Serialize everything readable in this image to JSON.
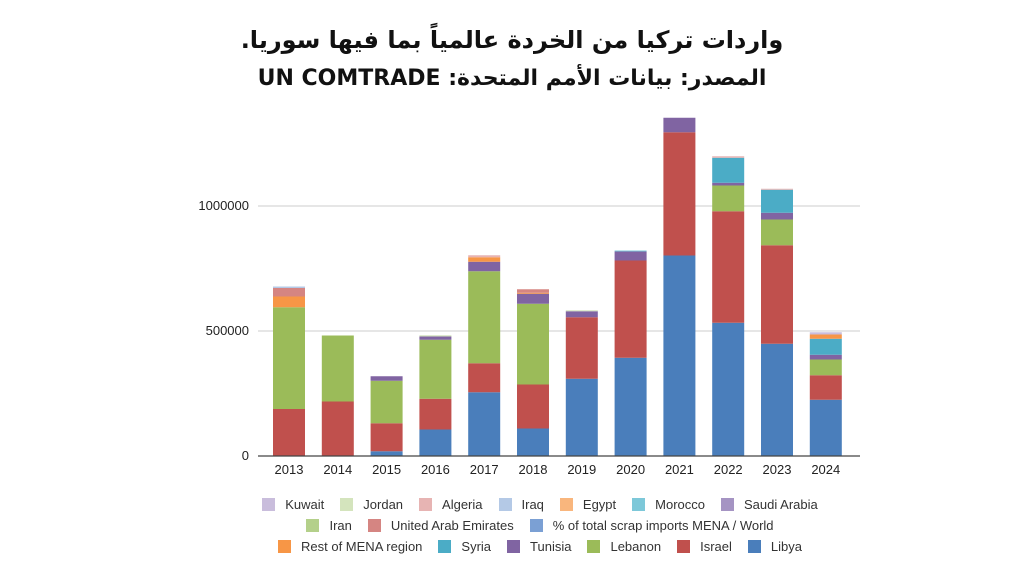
{
  "chart_data": {
    "type": "bar",
    "stacked": true,
    "title": "واردات  تركيا من الخردة عالمياً بما فيها سوريا.",
    "subtitle": "المصدر: بيانات الأمم المتحدة: UN COMTRADE",
    "xlabel": "",
    "ylabel": "",
    "ylim": [
      0,
      1360000
    ],
    "yticks": [
      0,
      500000,
      1000000
    ],
    "ytick_labels": [
      "0",
      "500000",
      "1000000"
    ],
    "grid": true,
    "legend_position": "bottom",
    "categories": [
      "2013",
      "2014",
      "2015",
      "2016",
      "2017",
      "2018",
      "2019",
      "2020",
      "2021",
      "2022",
      "2023",
      "2024"
    ],
    "series": [
      {
        "name": "Libya",
        "color": "#4a7ebb",
        "values": [
          0,
          0,
          19000,
          106000,
          255000,
          110000,
          309000,
          393000,
          802000,
          533000,
          449000,
          225000
        ]
      },
      {
        "name": "Israel",
        "color": "#c0504d",
        "values": [
          188000,
          218000,
          112000,
          123000,
          116000,
          176000,
          246000,
          389000,
          493000,
          446000,
          394000,
          98000
        ]
      },
      {
        "name": "Lebanon",
        "color": "#9bbb59",
        "values": [
          407000,
          264000,
          170000,
          236000,
          368000,
          323000,
          0,
          0,
          0,
          103000,
          103000,
          63000
        ]
      },
      {
        "name": "Tunisia",
        "color": "#8064a2",
        "values": [
          0,
          0,
          18000,
          13000,
          38000,
          40000,
          24000,
          36000,
          58000,
          11000,
          27000,
          19000
        ]
      },
      {
        "name": "Syria",
        "color": "#4bacc6",
        "values": [
          0,
          0,
          0,
          0,
          0,
          0,
          0,
          0,
          0,
          100000,
          92000,
          64000
        ]
      },
      {
        "name": "Rest of MENA region",
        "color": "#f79646",
        "values": [
          43000,
          0,
          0,
          0,
          18000,
          4000,
          0,
          0,
          0,
          0,
          0,
          17000
        ]
      },
      {
        "name": "% of total scrap imports MENA / World",
        "color": "#7ba0d4",
        "values": [
          0,
          0,
          0,
          0,
          0,
          0,
          0,
          0,
          0,
          0,
          0,
          0
        ]
      },
      {
        "name": "United Arab Emirates",
        "color": "#d58582",
        "values": [
          34000,
          0,
          0,
          0,
          0,
          14000,
          0,
          0,
          0,
          0,
          0,
          0
        ]
      },
      {
        "name": "Iran",
        "color": "#b4d08a",
        "values": [
          0,
          0,
          0,
          0,
          0,
          0,
          0,
          0,
          0,
          0,
          0,
          0
        ]
      },
      {
        "name": "Saudi Arabia",
        "color": "#a594c3",
        "values": [
          0,
          0,
          0,
          0,
          0,
          0,
          0,
          0,
          0,
          0,
          0,
          0
        ]
      },
      {
        "name": "Morocco",
        "color": "#7dc8d9",
        "values": [
          0,
          0,
          0,
          0,
          0,
          0,
          0,
          4000,
          0,
          0,
          0,
          0
        ]
      },
      {
        "name": "Egypt",
        "color": "#f9b67d",
        "values": [
          0,
          0,
          0,
          0,
          0,
          0,
          0,
          0,
          0,
          0,
          0,
          0
        ]
      },
      {
        "name": "Iraq",
        "color": "#b4c9e6",
        "values": [
          6000,
          0,
          0,
          0,
          0,
          0,
          0,
          0,
          0,
          0,
          0,
          0
        ]
      },
      {
        "name": "Algeria",
        "color": "#e7b4b3",
        "values": [
          0,
          0,
          0,
          0,
          8000,
          0,
          0,
          0,
          0,
          6000,
          4000,
          0
        ]
      },
      {
        "name": "Jordan",
        "color": "#d4e4bd",
        "values": [
          0,
          0,
          0,
          5000,
          0,
          0,
          4000,
          0,
          0,
          0,
          0,
          0
        ]
      },
      {
        "name": "Kuwait",
        "color": "#c9bddc",
        "values": [
          0,
          0,
          0,
          0,
          0,
          0,
          0,
          0,
          0,
          0,
          0,
          9000
        ]
      }
    ],
    "legend_rows": [
      [
        "Kuwait",
        "Jordan",
        "Algeria",
        "Iraq",
        "Egypt",
        "Morocco",
        "Saudi Arabia"
      ],
      [
        "Iran",
        "United Arab Emirates",
        "% of total scrap imports MENA / World"
      ],
      [
        "Rest of MENA region",
        "Syria",
        "Tunisia",
        "Lebanon",
        "Israel",
        "Libya"
      ]
    ]
  }
}
